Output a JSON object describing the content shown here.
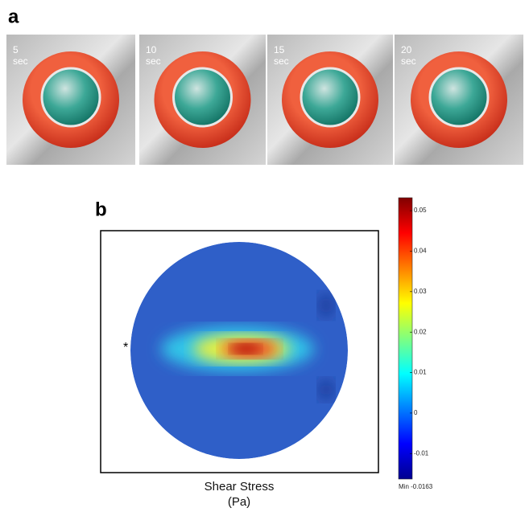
{
  "panel_a": {
    "label": "a",
    "images": [
      {
        "time": "5",
        "unit": "sec"
      },
      {
        "time": "10",
        "unit": "sec"
      },
      {
        "time": "15",
        "unit": "sec"
      },
      {
        "time": "20",
        "unit": "sec"
      }
    ]
  },
  "panel_b": {
    "label": "b",
    "marker": "*",
    "caption": [
      "Shear Stress",
      "(Pa)"
    ],
    "colorbar": {
      "range": [
        -0.0163,
        0.0532
      ],
      "ticks": [
        0.05,
        0.04,
        0.03,
        0.02,
        0.01,
        0,
        -0.01
      ],
      "min_label": {
        "value": -0.0163,
        "label": "Min -0.0163"
      }
    }
  }
}
